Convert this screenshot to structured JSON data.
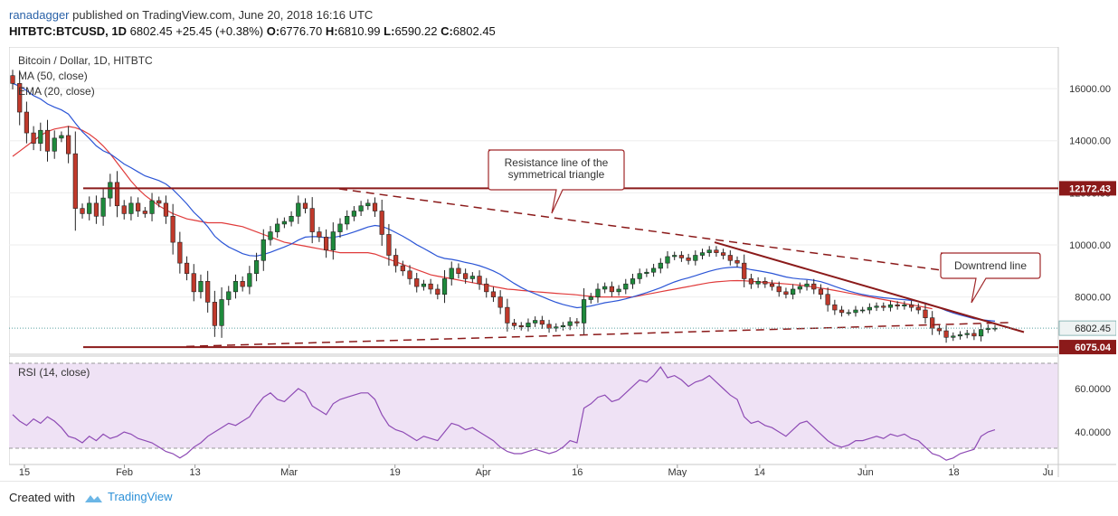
{
  "header": {
    "publisher": "ranadagger",
    "published_text": "published on TradingView.com, June 20, 2018 16:16 UTC",
    "symbol": "HITBTC:BTCUSD, 1D",
    "last": "6802.45",
    "change": "+25.45 (+0.38%)",
    "open_label": "O:",
    "open": "6776.70",
    "high_label": "H:",
    "high": "6810.99",
    "low_label": "L:",
    "low": "6590.22",
    "close_label": "C:",
    "close": "6802.45"
  },
  "legend": {
    "title": "Bitcoin / Dollar, 1D, HITBTC",
    "ma": "MA (50, close)",
    "ema": "EMA (20, close)",
    "rsi": "RSI (14, close)"
  },
  "colors": {
    "up": "#1e8a3c",
    "down": "#c0392b",
    "ma": "#e03b3b",
    "ema": "#2b55d6",
    "rsi": "#8e4bb5",
    "level": "#8b1a1a",
    "annotation": "#a0282a"
  },
  "annotations": {
    "resistance_line1": "Resistance line of the",
    "resistance_line2": "symmetrical triangle",
    "downtrend": "Downtrend line"
  },
  "chart_data": {
    "type": "candlestick",
    "title": "Bitcoin / Dollar, 1D, HITBTC",
    "price_ticks": [
      16000,
      14000,
      12000,
      10000,
      8000
    ],
    "price_tick_labels": [
      "16000.00",
      "14000.00",
      "12000.00",
      "10000.00",
      "8000.00"
    ],
    "price_range": [
      5800,
      17600
    ],
    "levels": [
      {
        "name": "resistance",
        "value": 12172.43,
        "label": "12172.43"
      },
      {
        "name": "support",
        "value": 6075.04,
        "label": "6075.04"
      }
    ],
    "last_price": {
      "value": 6802.45,
      "label": "6802.45"
    },
    "x_tick_labels": [
      "15",
      "Feb",
      "13",
      "Mar",
      "19",
      "Apr",
      "16",
      "May",
      "14",
      "Jun",
      "18",
      "Ju"
    ],
    "x_tick_days": [
      2,
      19,
      31,
      47,
      65,
      80,
      96,
      113,
      127,
      145,
      160,
      176
    ],
    "days": 168,
    "closes": [
      16200,
      15100,
      14300,
      13900,
      14400,
      13600,
      14100,
      14200,
      13500,
      11400,
      11200,
      11600,
      11100,
      11800,
      12400,
      11500,
      11200,
      11600,
      11300,
      11200,
      11700,
      11600,
      11100,
      10100,
      9300,
      8900,
      8200,
      8600,
      7800,
      6900,
      7900,
      8200,
      8600,
      8400,
      8900,
      9400,
      10200,
      10500,
      10800,
      10900,
      11100,
      11600,
      11400,
      10500,
      10300,
      9800,
      10500,
      10800,
      11100,
      11300,
      11500,
      11600,
      11300,
      10400,
      9600,
      9200,
      9000,
      8700,
      8400,
      8500,
      8300,
      8100,
      8700,
      9100,
      8900,
      8700,
      8800,
      8500,
      8200,
      8000,
      7600,
      7000,
      6900,
      6850,
      7000,
      7100,
      6950,
      6800,
      6850,
      6900,
      7050,
      7000,
      7900,
      8000,
      8300,
      8400,
      8200,
      8300,
      8500,
      8700,
      8900,
      8950,
      9100,
      9300,
      9550,
      9600,
      9500,
      9400,
      9600,
      9700,
      9800,
      9700,
      9600,
      9400,
      9300,
      8700,
      8500,
      8600,
      8500,
      8400,
      8200,
      8100,
      8300,
      8400,
      8500,
      8300,
      8100,
      7700,
      7500,
      7400,
      7400,
      7500,
      7500,
      7600,
      7650,
      7600,
      7700,
      7650,
      7700,
      7600,
      7500,
      7200,
      6800,
      6700,
      6450,
      6500,
      6550,
      6600,
      6500,
      6750,
      6800,
      6802
    ],
    "ma50": [
      13400,
      13600,
      13800,
      14000,
      14200,
      14350,
      14450,
      14500,
      14550,
      14500,
      14400,
      14250,
      14050,
      13800,
      13500,
      13150,
      12800,
      12450,
      12150,
      11900,
      11700,
      11500,
      11350,
      11200,
      11100,
      11000,
      10950,
      10900,
      10850,
      10850,
      10850,
      10800,
      10750,
      10700,
      10600,
      10500,
      10400,
      10300,
      10200,
      10100,
      10050,
      10000,
      9950,
      9900,
      9850,
      9800,
      9750,
      9700,
      9700,
      9700,
      9700,
      9700,
      9650,
      9550,
      9450,
      9350,
      9250,
      9150,
      9050,
      8950,
      8850,
      8800,
      8750,
      8700,
      8650,
      8600,
      8550,
      8500,
      8450,
      8400,
      8350,
      8300,
      8280,
      8250,
      8230,
      8200,
      8180,
      8160,
      8140,
      8120,
      8100,
      8080,
      8050,
      8020,
      8000,
      8000,
      8000,
      8000,
      8000,
      8000,
      8050,
      8100,
      8150,
      8200,
      8250,
      8300,
      8350,
      8400,
      8450,
      8500,
      8550,
      8580,
      8600,
      8620,
      8630,
      8620,
      8600,
      8580,
      8560,
      8540,
      8520,
      8500,
      8480,
      8450,
      8420,
      8380,
      8340,
      8300,
      8250,
      8200,
      8150,
      8100,
      8050,
      8000,
      7950,
      7900,
      7850,
      7800,
      7750,
      7700,
      7650,
      7600,
      7550
    ],
    "rsi_ticks": [
      60,
      40
    ],
    "rsi_tick_labels": [
      "60.0000",
      "40.0000"
    ],
    "rsi_range": [
      25,
      75
    ],
    "rsi_bands": [
      70,
      30
    ],
    "rsi": [
      48,
      45,
      43,
      46,
      44,
      47,
      45,
      42,
      38,
      37,
      35,
      38,
      36,
      39,
      37,
      38,
      40,
      39,
      37,
      36,
      35,
      33,
      31,
      30,
      28,
      30,
      33,
      35,
      38,
      40,
      42,
      44,
      43,
      45,
      47,
      52,
      56,
      58,
      55,
      54,
      57,
      60,
      58,
      52,
      50,
      48,
      53,
      55,
      56,
      57,
      58,
      58,
      55,
      48,
      43,
      41,
      40,
      38,
      36,
      38,
      37,
      36,
      40,
      44,
      43,
      41,
      42,
      40,
      38,
      36,
      33,
      31,
      30,
      30,
      31,
      32,
      31,
      30,
      31,
      33,
      36,
      35,
      51,
      53,
      56,
      57,
      54,
      55,
      58,
      61,
      64,
      63,
      66,
      70,
      65,
      66,
      64,
      61,
      63,
      64,
      66,
      63,
      60,
      57,
      55,
      47,
      44,
      45,
      43,
      42,
      40,
      38,
      41,
      44,
      45,
      42,
      39,
      36,
      34,
      33,
      34,
      36,
      36,
      37,
      38,
      37,
      39,
      38,
      39,
      37,
      36,
      33,
      30,
      29,
      27,
      28,
      30,
      31,
      32,
      38,
      40,
      41
    ]
  },
  "footer": {
    "created_with": "Created with",
    "brand": "TradingView"
  }
}
